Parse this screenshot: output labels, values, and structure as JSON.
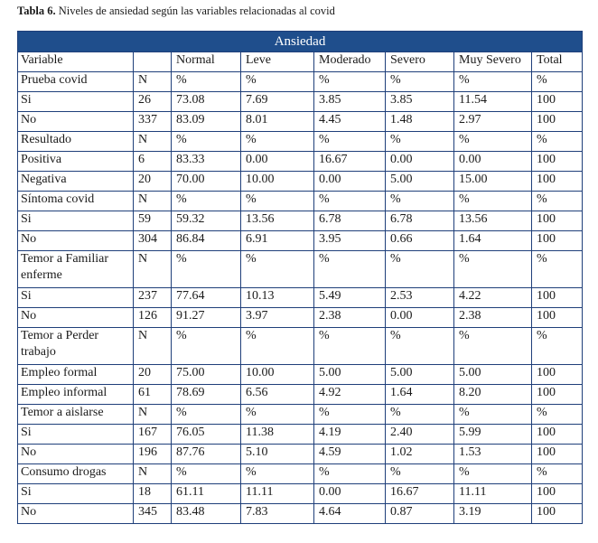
{
  "caption": {
    "label": "Tabla 6.",
    "text": " Niveles de ansiedad según las variables relacionadas al covid"
  },
  "table": {
    "band_title": "Ansiedad",
    "headers": [
      "Variable",
      "",
      "Normal",
      "Leve",
      "Moderado",
      "Severo",
      "Muy Severo",
      "Total"
    ],
    "rows": [
      [
        "Prueba covid",
        "N",
        "%",
        "%",
        "%",
        "%",
        "%",
        "%"
      ],
      [
        "Si",
        "26",
        "73.08",
        "7.69",
        "3.85",
        "3.85",
        "11.54",
        "100"
      ],
      [
        "No",
        "337",
        "83.09",
        "8.01",
        "4.45",
        "1.48",
        "2.97",
        "100"
      ],
      [
        "Resultado",
        "N",
        "%",
        "%",
        "%",
        "%",
        "%",
        "%"
      ],
      [
        "Positiva",
        "6",
        "83.33",
        "0.00",
        "16.67",
        "0.00",
        "0.00",
        "100"
      ],
      [
        "Negativa",
        "20",
        "70.00",
        "10.00",
        "0.00",
        "5.00",
        "15.00",
        "100"
      ],
      [
        "Síntoma covid",
        "N",
        "%",
        "%",
        "%",
        "%",
        "%",
        "%"
      ],
      [
        "Si",
        "59",
        "59.32",
        "13.56",
        "6.78",
        "6.78",
        "13.56",
        "100"
      ],
      [
        "No",
        "304",
        "86.84",
        "6.91",
        "3.95",
        "0.66",
        "1.64",
        "100"
      ],
      [
        "Temor a Familiar enferme",
        "N",
        "%",
        "%",
        "%",
        "%",
        "%",
        "%"
      ],
      [
        "Si",
        "237",
        "77.64",
        "10.13",
        "5.49",
        "2.53",
        "4.22",
        "100"
      ],
      [
        "No",
        "126",
        "91.27",
        "3.97",
        "2.38",
        "0.00",
        "2.38",
        "100"
      ],
      [
        "Temor a Perder trabajo",
        "N",
        "%",
        "%",
        "%",
        "%",
        "%",
        "%"
      ],
      [
        "Empleo formal",
        "20",
        "75.00",
        "10.00",
        "5.00",
        "5.00",
        "5.00",
        "100"
      ],
      [
        "Empleo informal",
        "61",
        "78.69",
        "6.56",
        "4.92",
        "1.64",
        "8.20",
        "100"
      ],
      [
        "Temor a aislarse",
        "N",
        "%",
        "%",
        "%",
        "%",
        "%",
        "%"
      ],
      [
        "Si",
        "167",
        "76.05",
        "11.38",
        "4.19",
        "2.40",
        "5.99",
        "100"
      ],
      [
        "No",
        "196",
        "87.76",
        "5.10",
        "4.59",
        "1.02",
        "1.53",
        "100"
      ],
      [
        "Consumo drogas",
        "N",
        "%",
        "%",
        "%",
        "%",
        "%",
        "%"
      ],
      [
        "Si",
        "18",
        "61.11",
        "11.11",
        "0.00",
        "16.67",
        "11.11",
        "100"
      ],
      [
        "No",
        "345",
        "83.48",
        "7.83",
        "4.64",
        "0.87",
        "3.19",
        "100"
      ]
    ],
    "tall_rows": [
      9,
      12
    ]
  }
}
